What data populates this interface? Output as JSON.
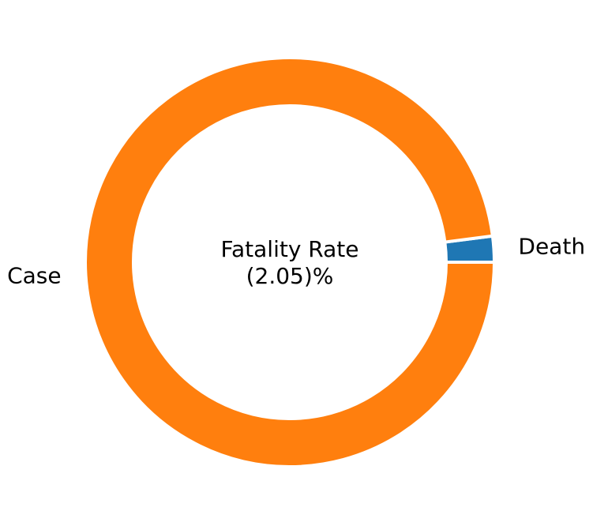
{
  "chart_data": {
    "type": "pie",
    "variant": "donut",
    "slices": [
      {
        "label": "Death",
        "value": 2.05,
        "color": "#1f77b4"
      },
      {
        "label": "Case",
        "value": 97.95,
        "color": "#ff7f0e"
      }
    ],
    "center_text": [
      "Fatality Rate",
      "(2.05)%"
    ],
    "start_angle_deg": 0,
    "direction": "counterclockwise",
    "slice_separator_color": "#ffffff"
  }
}
